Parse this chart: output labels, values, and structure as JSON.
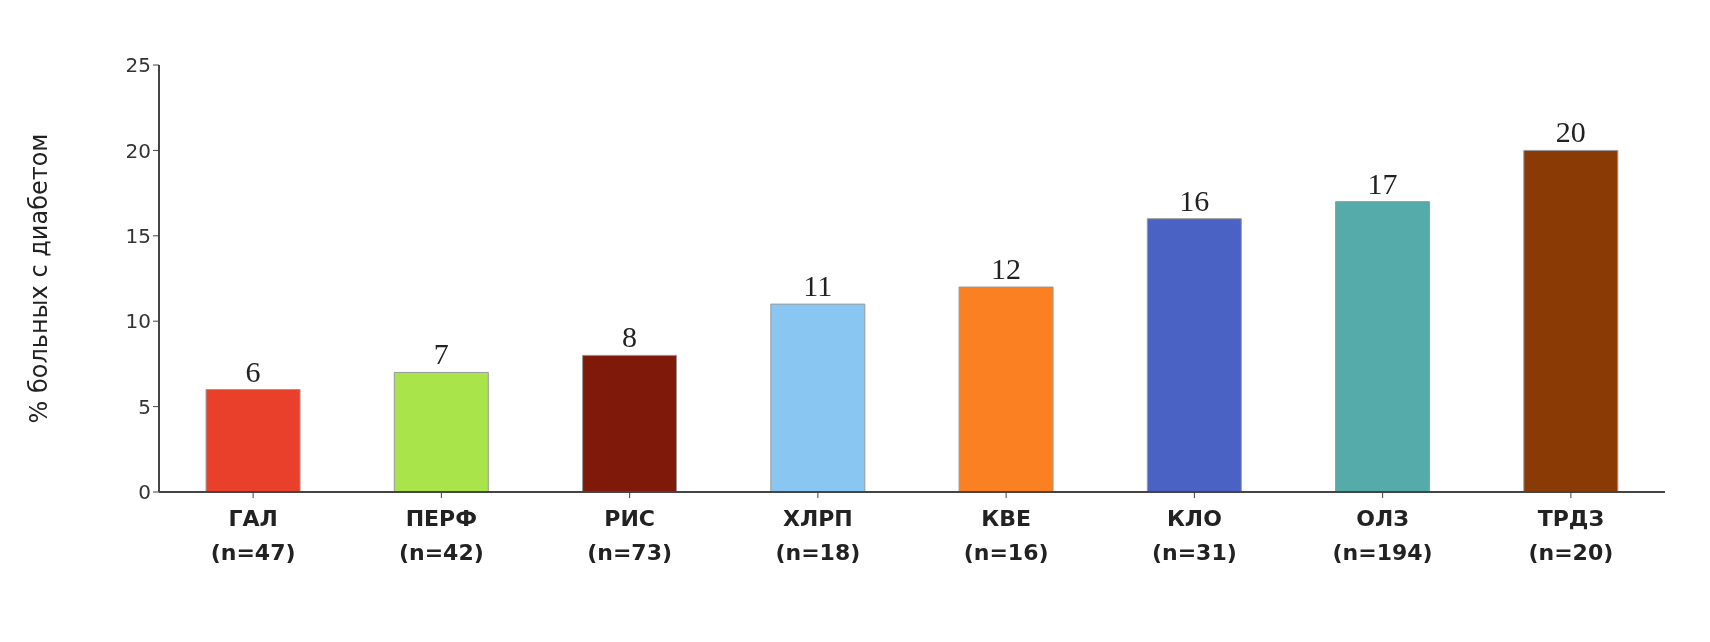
{
  "chart_data": {
    "type": "bar",
    "ylabel": "% больных с диабетом",
    "categories": [
      "ГАЛ\n(n=47)",
      "ПЕРФ\n(n=42)",
      "РИС\n(n=73)",
      "ХЛРП\n(n=18)",
      "КВЕ\n(n=16)",
      "КЛО\n(n=31)",
      "ОЛЗ\n(n=194)",
      "ТРДЗ\n(n=20)"
    ],
    "values": [
      6,
      7,
      8,
      11,
      12,
      16,
      17,
      20
    ],
    "colors": [
      "#e8402a",
      "#a8e44a",
      "#7f1a0a",
      "#8ac6f2",
      "#fb8022",
      "#4a62c4",
      "#55aaaa",
      "#8a3a05"
    ],
    "ylim": [
      0,
      25
    ],
    "yticks": [
      0,
      5,
      10,
      15,
      20,
      25
    ],
    "data_labels": true
  }
}
